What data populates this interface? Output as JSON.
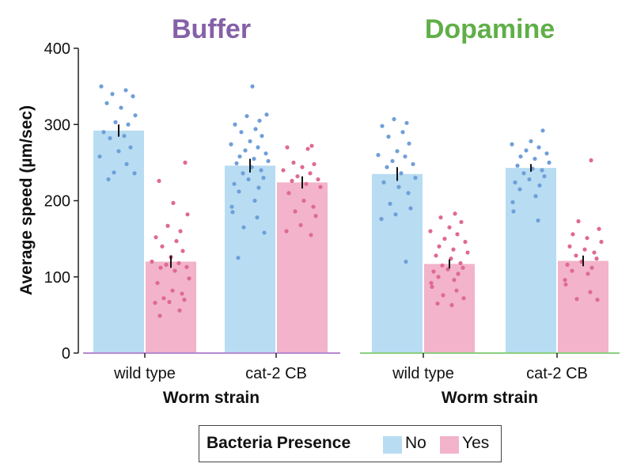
{
  "chart_data": {
    "type": "bar",
    "ylabel": "Average speed (µm/sec)",
    "ylim": [
      0,
      400
    ],
    "yticks": [
      0,
      100,
      200,
      300,
      400
    ],
    "grid": false,
    "legend": {
      "title": "Bacteria Presence",
      "placement": "bottom-center",
      "entries": [
        {
          "label": "No",
          "color": "#b8dcf2"
        },
        {
          "label": "Yes",
          "color": "#f2b3cb"
        }
      ]
    },
    "series_colors": {
      "No": "#b8dcf2",
      "Yes": "#f2b3cb"
    },
    "point_colors": {
      "No": "#6f9fd8",
      "Yes": "#de6a92"
    },
    "panels": [
      {
        "title": "Buffer",
        "title_color": "#8560a8",
        "axis_color": "#b58ad0",
        "xlabel": "Worm strain",
        "categories": [
          "wild type",
          "cat-2 CB"
        ],
        "series": [
          {
            "name": "No",
            "values": [
              292,
              246
            ],
            "errors": [
              8,
              9
            ]
          },
          {
            "name": "Yes",
            "values": [
              120,
              224
            ],
            "errors": [
              8,
              8
            ]
          }
        ],
        "points": [
          [
            [
              350,
              345,
              340,
              337,
              328,
              322,
              312,
              303,
              300,
              290,
              285,
              282,
              270,
              265,
              258,
              248,
              237,
              236,
              228
            ],
            [
              250,
              226,
              197,
              182,
              167,
              160,
              152,
              147,
              140,
              134,
              126,
              120,
              118,
              116,
              113,
              112,
              108,
              98,
              92,
              82,
              78,
              72,
              70,
              67,
              66,
              56,
              49
            ]
          ],
          [
            [
              350,
              313,
              311,
              305,
              300,
              294,
              290,
              285,
              278,
              274,
              270,
              266,
              262,
              258,
              255,
              252,
              249,
              244,
              240,
              236,
              230,
              228,
              222,
              217,
              212,
              200,
              192,
              185,
              178,
              165,
              158,
              125
            ],
            [
              272,
              270,
              268,
              250,
              248,
              244,
              240,
              236,
              232,
              228,
              226,
              222,
              218,
              210,
              200,
              192,
              186,
              180,
              168,
              160,
              155
            ]
          ]
        ]
      },
      {
        "title": "Dopamine",
        "title_color": "#5faf48",
        "axis_color": "#8ccf80",
        "xlabel": "Worm strain",
        "categories": [
          "wild type",
          "cat-2 CB"
        ],
        "series": [
          {
            "name": "No",
            "values": [
              235,
              243
            ],
            "errors": [
              9,
              5
            ]
          },
          {
            "name": "Yes",
            "values": [
              117,
              121
            ],
            "errors": [
              6,
              7
            ]
          }
        ],
        "points": [
          [
            [
              307,
              302,
              298,
              290,
              284,
              275,
              265,
              260,
              258,
              252,
              248,
              244,
              236,
              230,
              224,
              218,
              210,
              196,
              190,
              182,
              176,
              120
            ],
            [
              183,
              178,
              172,
              165,
              160,
              156,
              150,
              146,
              140,
              136,
              132,
              128,
              124,
              118,
              115,
              112,
              110,
              107,
              104,
              100,
              96,
              92,
              87,
              82,
              76,
              72,
              65,
              63
            ]
          ],
          [
            [
              292,
              278,
              274,
              270,
              266,
              262,
              258,
              255,
              250,
              246,
              242,
              240,
              236,
              232,
              228,
              224,
              220,
              215,
              206,
              198,
              186,
              174
            ],
            [
              253,
              173,
              163,
              156,
              151,
              146,
              140,
              136,
              132,
              128,
              124,
              120,
              116,
              112,
              108,
              104,
              96,
              90,
              80,
              71,
              70
            ]
          ]
        ]
      }
    ]
  }
}
